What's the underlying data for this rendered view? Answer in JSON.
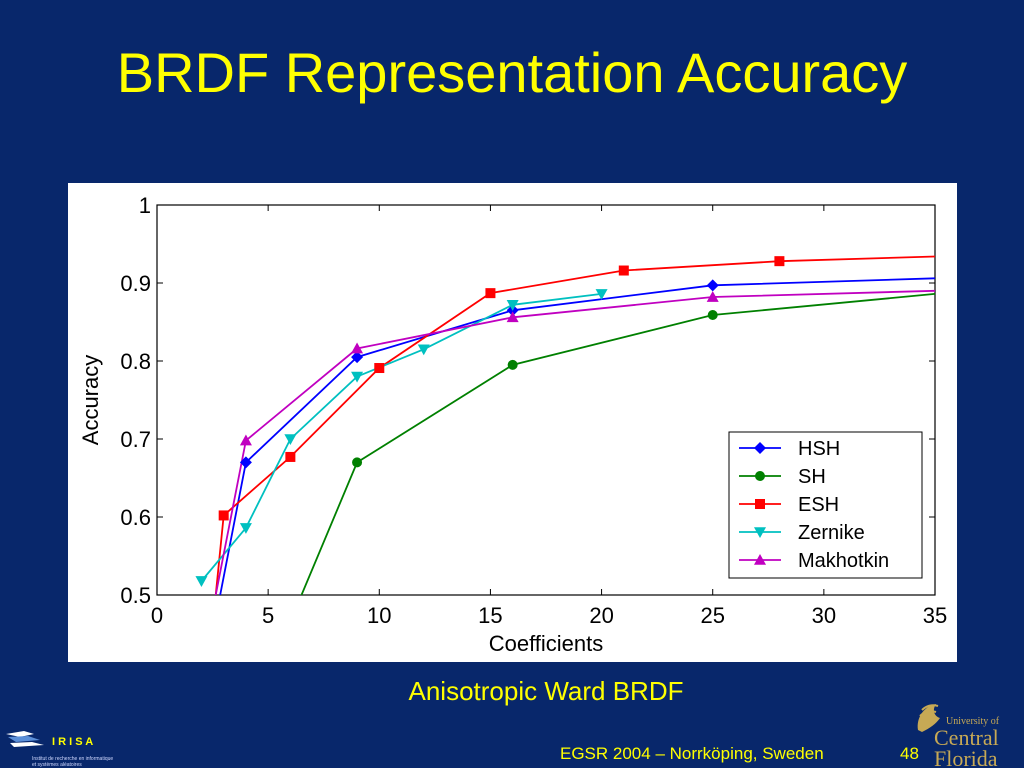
{
  "slide": {
    "title": "BRDF Representation Accuracy",
    "caption": "Anisotropic Ward BRDF",
    "footer": "EGSR 2004 – Norrköping, Sweden",
    "slide_number": "48",
    "background": "#08276b",
    "text_color": "#ffff00"
  },
  "logos": {
    "irisa": {
      "name": "I R I S A",
      "line1": "Institut de recherche en informatique",
      "line2": "et systèmes aléatoires"
    },
    "ucf": {
      "line1": "University of",
      "line2": "Central",
      "line3": "Florida"
    }
  },
  "chart_data": {
    "type": "line",
    "title": "",
    "xlabel": "Coefficients",
    "ylabel": "Accuracy",
    "xlim": [
      0,
      35
    ],
    "ylim": [
      0.5,
      1
    ],
    "xticks": [
      0,
      5,
      10,
      15,
      20,
      25,
      30,
      35
    ],
    "yticks": [
      0.5,
      0.6,
      0.7,
      0.8,
      0.9,
      1
    ],
    "ytick_labels": [
      "0.5",
      "0.6",
      "0.7",
      "0.8",
      "0.9",
      "1"
    ],
    "grid": false,
    "legend_position": "bottom-right",
    "series": [
      {
        "name": "HSH",
        "color": "#0000ff",
        "marker": "diamond",
        "x": [
          2.5,
          4,
          9,
          16,
          25,
          35
        ],
        "y": [
          0.45,
          0.67,
          0.805,
          0.865,
          0.897,
          0.906
        ],
        "markers": [
          [
            4,
            0.67
          ],
          [
            9,
            0.805
          ],
          [
            16,
            0.865
          ],
          [
            25,
            0.897
          ]
        ]
      },
      {
        "name": "SH",
        "color": "#008000",
        "marker": "circle",
        "x": [
          4,
          9,
          16,
          25,
          35
        ],
        "y": [
          0.33,
          0.67,
          0.795,
          0.859,
          0.886
        ],
        "markers": [
          [
            9,
            0.67
          ],
          [
            16,
            0.795
          ],
          [
            25,
            0.859
          ]
        ]
      },
      {
        "name": "ESH",
        "color": "#ff0000",
        "marker": "square",
        "x": [
          2.5,
          3,
          6,
          10,
          15,
          21,
          28,
          35
        ],
        "y": [
          0.46,
          0.602,
          0.677,
          0.791,
          0.887,
          0.916,
          0.928,
          0.934
        ],
        "markers": [
          [
            3,
            0.602
          ],
          [
            6,
            0.677
          ],
          [
            10,
            0.791
          ],
          [
            15,
            0.887
          ],
          [
            21,
            0.916
          ],
          [
            28,
            0.928
          ]
        ]
      },
      {
        "name": "Zernike",
        "color": "#00c0c0",
        "marker": "triangle-down",
        "x": [
          2,
          4,
          6,
          9,
          12,
          16,
          20
        ],
        "y": [
          0.518,
          0.586,
          0.7,
          0.78,
          0.815,
          0.872,
          0.886
        ],
        "markers": [
          [
            2,
            0.518
          ],
          [
            4,
            0.586
          ],
          [
            6,
            0.7
          ],
          [
            9,
            0.78
          ],
          [
            12,
            0.815
          ],
          [
            16,
            0.872
          ],
          [
            20,
            0.886
          ]
        ]
      },
      {
        "name": "Makhotkin",
        "color": "#c000c0",
        "marker": "triangle-up",
        "x": [
          2.3,
          4,
          9,
          16,
          25,
          35
        ],
        "y": [
          0.45,
          0.698,
          0.816,
          0.856,
          0.882,
          0.89
        ],
        "markers": [
          [
            4,
            0.698
          ],
          [
            9,
            0.816
          ],
          [
            16,
            0.856
          ],
          [
            25,
            0.882
          ]
        ]
      }
    ]
  }
}
